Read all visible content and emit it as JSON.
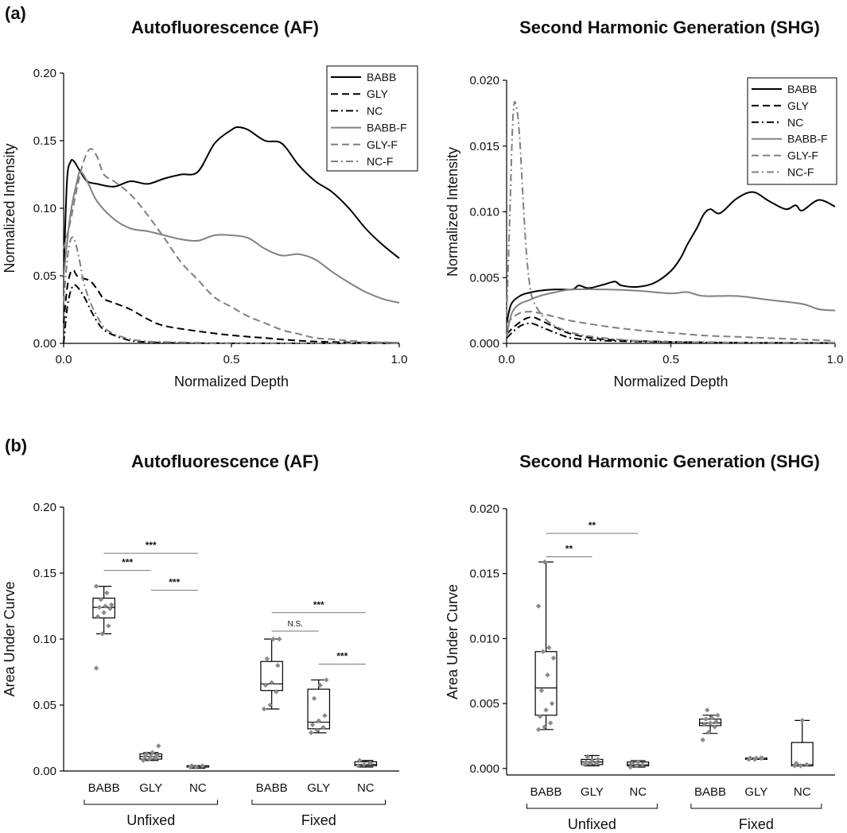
{
  "figure": {
    "panel_a_label": "(a)",
    "panel_b_label": "(b)"
  },
  "styles": {
    "BABB": {
      "color": "#000000",
      "dash": ""
    },
    "GLY": {
      "color": "#000000",
      "dash": "9,5"
    },
    "NC": {
      "color": "#000000",
      "dash": "9,4,2,4"
    },
    "BABB-F": {
      "color": "#808080",
      "dash": ""
    },
    "GLY-F": {
      "color": "#808080",
      "dash": "9,5"
    },
    "NC-F": {
      "color": "#808080",
      "dash": "9,4,2,4"
    }
  },
  "chart_data": [
    {
      "id": "af-profile",
      "type": "line",
      "title": "Autofluorescence (AF)",
      "xlabel": "Normalized Depth",
      "ylabel": "Normalized Intensity",
      "xlim": [
        0,
        1.0
      ],
      "ylim": [
        0,
        0.2
      ],
      "xticks": [
        0,
        0.5,
        1.0
      ],
      "xtick_labels": [
        "0.0",
        "0.5",
        "1.0"
      ],
      "yticks": [
        0,
        0.05,
        0.1,
        0.15,
        0.2
      ],
      "ytick_labels": [
        "0.00",
        "0.05",
        "0.10",
        "0.15",
        "0.20"
      ],
      "legend_position": "top-right",
      "series": [
        {
          "name": "BABB",
          "x": [
            0,
            0.01,
            0.02,
            0.03,
            0.05,
            0.07,
            0.1,
            0.15,
            0.2,
            0.25,
            0.3,
            0.35,
            0.4,
            0.45,
            0.5,
            0.52,
            0.55,
            0.6,
            0.65,
            0.7,
            0.75,
            0.8,
            0.85,
            0.9,
            0.95,
            1.0
          ],
          "y": [
            0.05,
            0.12,
            0.134,
            0.135,
            0.127,
            0.12,
            0.118,
            0.116,
            0.12,
            0.118,
            0.122,
            0.125,
            0.127,
            0.148,
            0.158,
            0.16,
            0.158,
            0.15,
            0.148,
            0.132,
            0.12,
            0.112,
            0.1,
            0.085,
            0.073,
            0.063
          ]
        },
        {
          "name": "GLY",
          "x": [
            0,
            0.01,
            0.02,
            0.03,
            0.04,
            0.06,
            0.08,
            0.1,
            0.12,
            0.15,
            0.2,
            0.25,
            0.3,
            0.4,
            0.5,
            0.6,
            0.7,
            0.8,
            0.9,
            1.0
          ],
          "y": [
            0.015,
            0.04,
            0.052,
            0.054,
            0.05,
            0.048,
            0.046,
            0.04,
            0.033,
            0.03,
            0.025,
            0.018,
            0.013,
            0.009,
            0.006,
            0.004,
            0.002,
            0.001,
            0.0005,
            0.0003
          ]
        },
        {
          "name": "NC",
          "x": [
            0,
            0.01,
            0.02,
            0.03,
            0.04,
            0.06,
            0.08,
            0.1,
            0.12,
            0.15,
            0.2,
            0.25,
            0.3,
            0.4,
            0.5,
            1.0
          ],
          "y": [
            0.0,
            0.025,
            0.038,
            0.043,
            0.042,
            0.035,
            0.025,
            0.016,
            0.01,
            0.006,
            0.002,
            0.001,
            0.0005,
            0.0002,
            0.0001,
            0.0
          ]
        },
        {
          "name": "BABB-F",
          "x": [
            0,
            0.02,
            0.04,
            0.05,
            0.07,
            0.1,
            0.15,
            0.2,
            0.25,
            0.3,
            0.35,
            0.4,
            0.45,
            0.5,
            0.55,
            0.6,
            0.65,
            0.7,
            0.75,
            0.8,
            0.85,
            0.9,
            0.95,
            1.0
          ],
          "y": [
            0.05,
            0.095,
            0.12,
            0.127,
            0.12,
            0.105,
            0.092,
            0.085,
            0.083,
            0.08,
            0.077,
            0.076,
            0.08,
            0.08,
            0.078,
            0.07,
            0.065,
            0.066,
            0.062,
            0.053,
            0.045,
            0.038,
            0.033,
            0.03
          ]
        },
        {
          "name": "GLY-F",
          "x": [
            0,
            0.02,
            0.04,
            0.06,
            0.08,
            0.1,
            0.12,
            0.15,
            0.2,
            0.25,
            0.3,
            0.35,
            0.4,
            0.45,
            0.5,
            0.55,
            0.6,
            0.65,
            0.7,
            0.75,
            0.8,
            0.85,
            0.9,
            0.95,
            1.0
          ],
          "y": [
            0.07,
            0.09,
            0.115,
            0.135,
            0.144,
            0.138,
            0.125,
            0.12,
            0.11,
            0.095,
            0.078,
            0.06,
            0.047,
            0.034,
            0.027,
            0.02,
            0.015,
            0.01,
            0.007,
            0.004,
            0.003,
            0.002,
            0.001,
            0.0008,
            0.0005
          ]
        },
        {
          "name": "NC-F",
          "x": [
            0,
            0.01,
            0.02,
            0.03,
            0.04,
            0.05,
            0.06,
            0.08,
            0.1,
            0.12,
            0.15,
            0.2,
            0.25,
            0.3,
            0.4,
            0.5,
            1.0
          ],
          "y": [
            0.03,
            0.06,
            0.076,
            0.078,
            0.07,
            0.058,
            0.045,
            0.03,
            0.02,
            0.012,
            0.007,
            0.003,
            0.0015,
            0.001,
            0.0005,
            0.0002,
            0.0
          ]
        }
      ]
    },
    {
      "id": "shg-profile",
      "type": "line",
      "title": "Second Harmonic Generation (SHG)",
      "xlabel": "Normalized Depth",
      "ylabel": "Normalized Intensity",
      "xlim": [
        0,
        1.0
      ],
      "ylim": [
        0,
        0.02
      ],
      "xticks": [
        0,
        0.5,
        1.0
      ],
      "xtick_labels": [
        "0.0",
        "0.5",
        "1.0"
      ],
      "yticks": [
        0,
        0.005,
        0.01,
        0.015,
        0.02
      ],
      "ytick_labels": [
        "0.000",
        "0.005",
        "0.010",
        "0.015",
        "0.020"
      ],
      "legend_position": "top-right",
      "series": [
        {
          "name": "BABB",
          "x": [
            0,
            0.01,
            0.02,
            0.04,
            0.06,
            0.1,
            0.15,
            0.2,
            0.22,
            0.25,
            0.3,
            0.33,
            0.35,
            0.4,
            0.45,
            0.5,
            0.53,
            0.55,
            0.58,
            0.6,
            0.62,
            0.65,
            0.7,
            0.75,
            0.8,
            0.85,
            0.88,
            0.9,
            0.95,
            1.0
          ],
          "y": [
            0.0015,
            0.0027,
            0.0032,
            0.0036,
            0.0038,
            0.004,
            0.0041,
            0.0041,
            0.0044,
            0.0042,
            0.0045,
            0.0047,
            0.0044,
            0.0043,
            0.0046,
            0.0055,
            0.0065,
            0.0075,
            0.0088,
            0.0098,
            0.0102,
            0.0099,
            0.011,
            0.0115,
            0.0108,
            0.0102,
            0.0105,
            0.0101,
            0.0109,
            0.0104
          ]
        },
        {
          "name": "GLY",
          "x": [
            0,
            0.02,
            0.04,
            0.06,
            0.08,
            0.1,
            0.15,
            0.2,
            0.3,
            0.5,
            0.7,
            1.0
          ],
          "y": [
            0.0007,
            0.0012,
            0.0016,
            0.0019,
            0.002,
            0.0018,
            0.0012,
            0.0007,
            0.0003,
            0.00012,
            6e-05,
            3e-05
          ]
        },
        {
          "name": "NC",
          "x": [
            0,
            0.02,
            0.04,
            0.06,
            0.08,
            0.1,
            0.15,
            0.2,
            0.3,
            0.5,
            0.7,
            1.0
          ],
          "y": [
            0.0004,
            0.0009,
            0.0013,
            0.0015,
            0.0015,
            0.0013,
            0.0008,
            0.0004,
            0.0002,
            0.0001,
            5e-05,
            2e-05
          ]
        },
        {
          "name": "BABB-F",
          "x": [
            0,
            0.01,
            0.02,
            0.04,
            0.07,
            0.1,
            0.15,
            0.2,
            0.3,
            0.4,
            0.5,
            0.55,
            0.6,
            0.7,
            0.8,
            0.9,
            0.95,
            1.0
          ],
          "y": [
            0.0005,
            0.0018,
            0.0025,
            0.003,
            0.0033,
            0.0036,
            0.0039,
            0.0041,
            0.0041,
            0.004,
            0.0038,
            0.0039,
            0.0036,
            0.0036,
            0.0033,
            0.003,
            0.0026,
            0.0025
          ]
        },
        {
          "name": "GLY-F",
          "x": [
            0,
            0.02,
            0.04,
            0.06,
            0.08,
            0.1,
            0.15,
            0.2,
            0.3,
            0.4,
            0.5,
            0.6,
            0.7,
            0.8,
            0.9,
            1.0
          ],
          "y": [
            0.0015,
            0.002,
            0.0023,
            0.0024,
            0.0024,
            0.0023,
            0.002,
            0.0017,
            0.0013,
            0.001,
            0.0008,
            0.0006,
            0.0005,
            0.0004,
            0.0003,
            0.0002
          ]
        },
        {
          "name": "NC-F",
          "x": [
            0,
            0.01,
            0.02,
            0.03,
            0.04,
            0.05,
            0.06,
            0.07,
            0.08,
            0.1,
            0.12,
            0.15,
            0.2,
            0.3,
            0.5,
            1.0
          ],
          "y": [
            0.002,
            0.01,
            0.0175,
            0.018,
            0.0155,
            0.011,
            0.007,
            0.0045,
            0.0033,
            0.0024,
            0.0018,
            0.0013,
            0.0008,
            0.0004,
            0.0001,
            5e-05
          ]
        }
      ]
    },
    {
      "id": "af-auc",
      "type": "box",
      "title": "Autofluorescence (AF)",
      "xlabel": "",
      "ylabel": "Area Under Curve",
      "ylim": [
        0,
        0.2
      ],
      "yticks": [
        0,
        0.05,
        0.1,
        0.15,
        0.2
      ],
      "ytick_labels": [
        "0.00",
        "0.05",
        "0.10",
        "0.15",
        "0.20"
      ],
      "groups": [
        {
          "name": "Unfixed",
          "categories": [
            "BABB",
            "GLY",
            "NC"
          ]
        },
        {
          "name": "Fixed",
          "categories": [
            "BABB",
            "GLY",
            "NC"
          ]
        }
      ],
      "boxes": [
        {
          "group": "Unfixed",
          "category": "BABB",
          "min": 0.104,
          "q1": 0.116,
          "median": 0.124,
          "q3": 0.131,
          "max": 0.14,
          "points": [
            0.078,
            0.104,
            0.11,
            0.117,
            0.12,
            0.123,
            0.124,
            0.125,
            0.126,
            0.13,
            0.135,
            0.14
          ]
        },
        {
          "group": "Unfixed",
          "category": "GLY",
          "min": 0.008,
          "q1": 0.009,
          "median": 0.011,
          "q3": 0.013,
          "max": 0.014,
          "points": [
            0.008,
            0.009,
            0.01,
            0.011,
            0.011,
            0.012,
            0.013,
            0.014,
            0.019
          ]
        },
        {
          "group": "Unfixed",
          "category": "NC",
          "min": 0.002,
          "q1": 0.003,
          "median": 0.003,
          "q3": 0.004,
          "max": 0.004,
          "points": [
            0.003,
            0.003,
            0.004,
            0.004
          ]
        },
        {
          "group": "Fixed",
          "category": "BABB",
          "min": 0.047,
          "q1": 0.061,
          "median": 0.066,
          "q3": 0.083,
          "max": 0.1,
          "points": [
            0.047,
            0.05,
            0.06,
            0.065,
            0.067,
            0.08,
            0.085,
            0.1,
            0.1
          ]
        },
        {
          "group": "Fixed",
          "category": "GLY",
          "min": 0.029,
          "q1": 0.032,
          "median": 0.037,
          "q3": 0.062,
          "max": 0.069,
          "points": [
            0.029,
            0.031,
            0.033,
            0.035,
            0.038,
            0.042,
            0.055,
            0.065,
            0.069
          ]
        },
        {
          "group": "Fixed",
          "category": "NC",
          "min": 0.003,
          "q1": 0.004,
          "median": 0.005,
          "q3": 0.007,
          "max": 0.008,
          "points": [
            0.004,
            0.005,
            0.006,
            0.008
          ]
        }
      ],
      "significance": [
        {
          "from": 0,
          "to": 2,
          "y": 0.165,
          "label": "***"
        },
        {
          "from": 0,
          "to": 1,
          "y": 0.152,
          "label": "***"
        },
        {
          "from": 1,
          "to": 2,
          "y": 0.137,
          "label": "***"
        },
        {
          "from": 3,
          "to": 5,
          "y": 0.12,
          "label": "***"
        },
        {
          "from": 3,
          "to": 4,
          "y": 0.106,
          "label": "N.S."
        },
        {
          "from": 4,
          "to": 5,
          "y": 0.081,
          "label": "***"
        }
      ]
    },
    {
      "id": "shg-auc",
      "type": "box",
      "title": "Second Harmonic Generation (SHG)",
      "xlabel": "",
      "ylabel": "Area Under Curve",
      "ylim": [
        -0.0005,
        0.02
      ],
      "yticks": [
        0,
        0.005,
        0.01,
        0.015,
        0.02
      ],
      "ytick_labels": [
        "0.000",
        "0.005",
        "0.010",
        "0.015",
        "0.020"
      ],
      "groups": [
        {
          "name": "Unfixed",
          "categories": [
            "BABB",
            "GLY",
            "NC"
          ]
        },
        {
          "name": "Fixed",
          "categories": [
            "BABB",
            "GLY",
            "NC"
          ]
        }
      ],
      "boxes": [
        {
          "group": "Unfixed",
          "category": "BABB",
          "min": 0.003,
          "q1": 0.0041,
          "median": 0.0062,
          "q3": 0.009,
          "max": 0.0159,
          "points": [
            0.003,
            0.0032,
            0.0035,
            0.004,
            0.0045,
            0.005,
            0.006,
            0.0072,
            0.0085,
            0.009,
            0.0093,
            0.0125,
            0.0159
          ]
        },
        {
          "group": "Unfixed",
          "category": "GLY",
          "min": 0.0002,
          "q1": 0.0003,
          "median": 0.0005,
          "q3": 0.0007,
          "max": 0.001,
          "points": [
            0.0003,
            0.0004,
            0.0004,
            0.0005,
            0.0006,
            0.0007,
            0.0009
          ]
        },
        {
          "group": "Unfixed",
          "category": "NC",
          "min": 0.0001,
          "q1": 0.0002,
          "median": 0.0003,
          "q3": 0.0005,
          "max": 0.0006,
          "points": [
            0.0001,
            0.0002,
            0.0003,
            0.0004,
            0.0005
          ]
        },
        {
          "group": "Fixed",
          "category": "BABB",
          "min": 0.0027,
          "q1": 0.0033,
          "median": 0.0035,
          "q3": 0.0038,
          "max": 0.0041,
          "points": [
            0.0022,
            0.0028,
            0.0032,
            0.0034,
            0.0035,
            0.0036,
            0.0038,
            0.0039,
            0.0041,
            0.0045
          ]
        },
        {
          "group": "Fixed",
          "category": "GLY",
          "min": 0.0007,
          "q1": 0.0007,
          "median": 0.0008,
          "q3": 0.0008,
          "max": 0.0008,
          "points": [
            0.0007,
            0.0007,
            0.0008,
            0.0008,
            0.0008,
            0.0008
          ]
        },
        {
          "group": "Fixed",
          "category": "NC",
          "min": 0.0002,
          "q1": 0.0002,
          "median": 0.0003,
          "q3": 0.002,
          "max": 0.0037,
          "points": [
            0.0002,
            0.0002,
            0.0003,
            0.0004,
            0.0037
          ]
        }
      ],
      "significance": [
        {
          "from": 0,
          "to": 2,
          "y": 0.0181,
          "label": "**"
        },
        {
          "from": 0,
          "to": 1,
          "y": 0.0163,
          "label": "**"
        }
      ]
    }
  ]
}
